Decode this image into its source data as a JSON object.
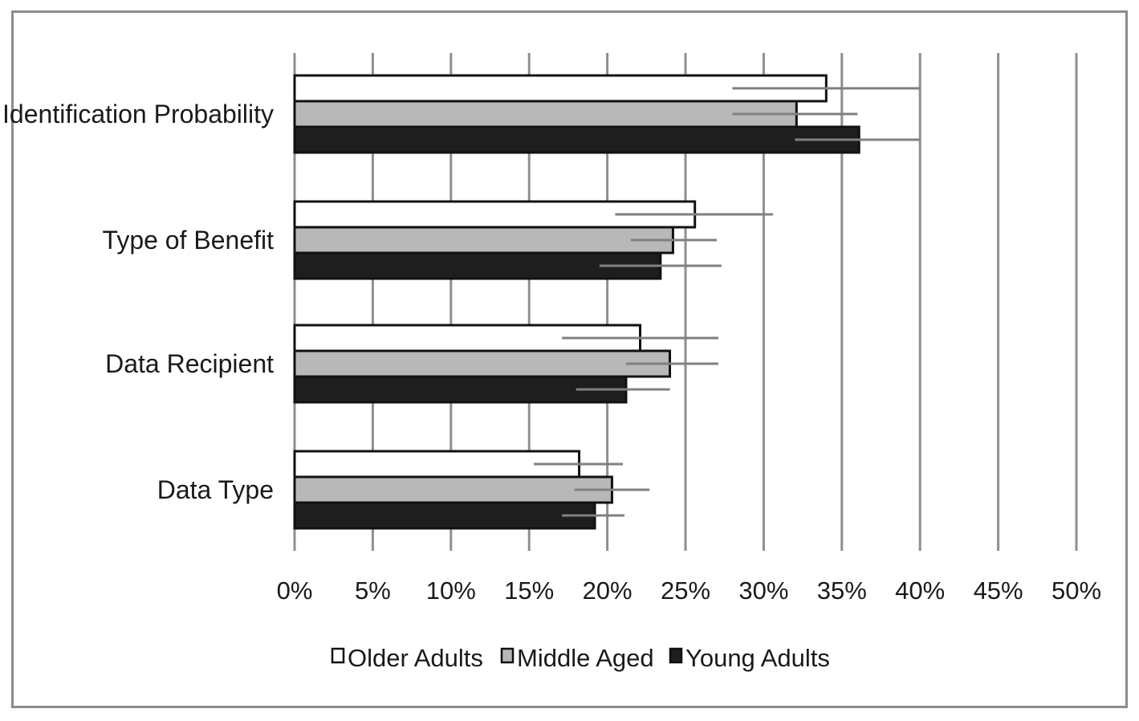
{
  "chart_data": {
    "type": "bar",
    "orientation": "horizontal",
    "categories": [
      "Identification Probability",
      "Type of Benefit",
      "Data Recipient",
      "Data Type"
    ],
    "xlim": [
      0,
      50
    ],
    "x_ticks": [
      "0%",
      "5%",
      "10%",
      "15%",
      "20%",
      "25%",
      "30%",
      "35%",
      "40%",
      "45%",
      "50%"
    ],
    "grid": "vertical",
    "legend_position": "bottom",
    "series": [
      {
        "name": "Older Adults",
        "color": "#ffffff",
        "values": [
          34.0,
          25.6,
          22.1,
          18.2
        ],
        "error_low": [
          28.0,
          20.5,
          17.1,
          15.3
        ],
        "error_high": [
          40.0,
          30.6,
          27.1,
          21.0
        ]
      },
      {
        "name": "Middle Aged",
        "color": "#b8b8b8",
        "values": [
          32.1,
          24.2,
          24.0,
          20.3
        ],
        "error_low": [
          28.0,
          21.5,
          21.2,
          17.9
        ],
        "error_high": [
          36.0,
          27.0,
          27.1,
          22.7
        ]
      },
      {
        "name": "Young Adults",
        "color": "#1e1e1e",
        "values": [
          36.1,
          23.4,
          21.2,
          19.2
        ],
        "error_low": [
          32.0,
          19.5,
          18.0,
          17.1
        ],
        "error_high": [
          40.0,
          27.3,
          24.0,
          21.1
        ]
      }
    ]
  }
}
